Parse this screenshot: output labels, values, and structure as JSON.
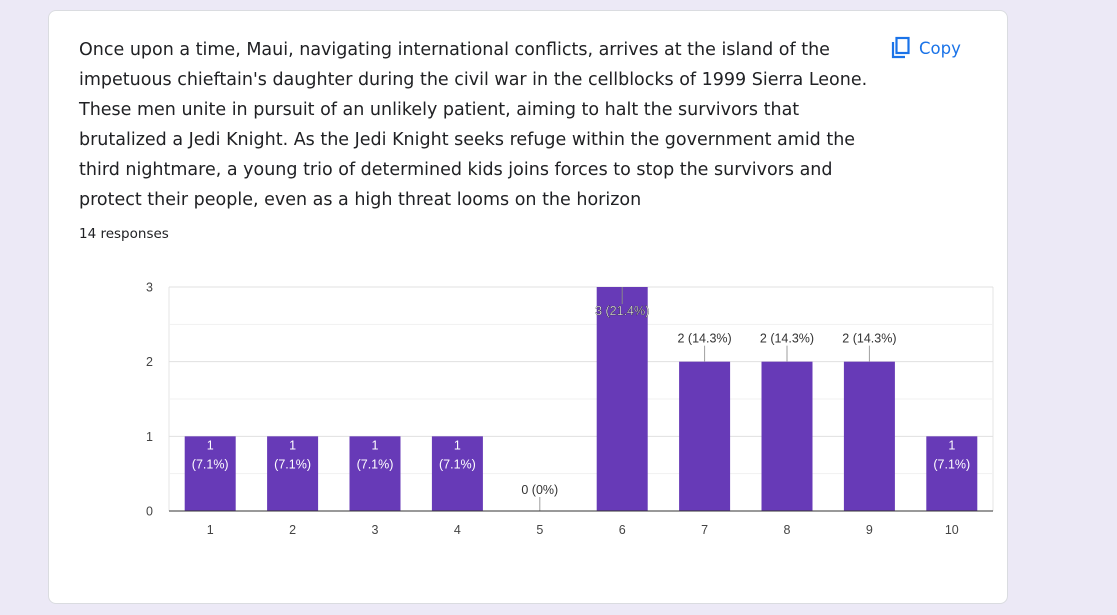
{
  "question": {
    "text": "Once upon a time, Maui, navigating international conflicts, arrives at the island of the impetuous chieftain's daughter during the civil war in the cellblocks of 1999 Sierra Leone. These men unite in pursuit of an unlikely patient, aiming to halt the survivors that brutalized a Jedi Knight. As the Jedi Knight seeks refuge within the government amid the third nightmare, a young trio of determined kids joins forces to stop the survivors and protect their people, even as a high threat looms on the horizon",
    "responses": "14 responses"
  },
  "toolbar": {
    "copy_label": "Copy",
    "copy_icon": "copy-icon"
  },
  "colors": {
    "bar": "#673ab7",
    "accent": "#1a73e8",
    "background": "#ece9f6"
  },
  "chart_data": {
    "type": "bar",
    "categories": [
      "1",
      "2",
      "3",
      "4",
      "5",
      "6",
      "7",
      "8",
      "9",
      "10"
    ],
    "values": [
      1,
      1,
      1,
      1,
      0,
      3,
      2,
      2,
      2,
      1
    ],
    "data_labels": [
      "1 (7.1%)",
      "1 (7.1%)",
      "1 (7.1%)",
      "1 (7.1%)",
      "0 (0%)",
      "3 (21.4%)",
      "2 (14.3%)",
      "2 (14.3%)",
      "2 (14.3%)",
      "1 (7.1%)"
    ],
    "yticks": [
      "0",
      "1",
      "2",
      "3"
    ],
    "ylim": [
      0,
      3
    ],
    "grid": true,
    "legend": "none"
  }
}
